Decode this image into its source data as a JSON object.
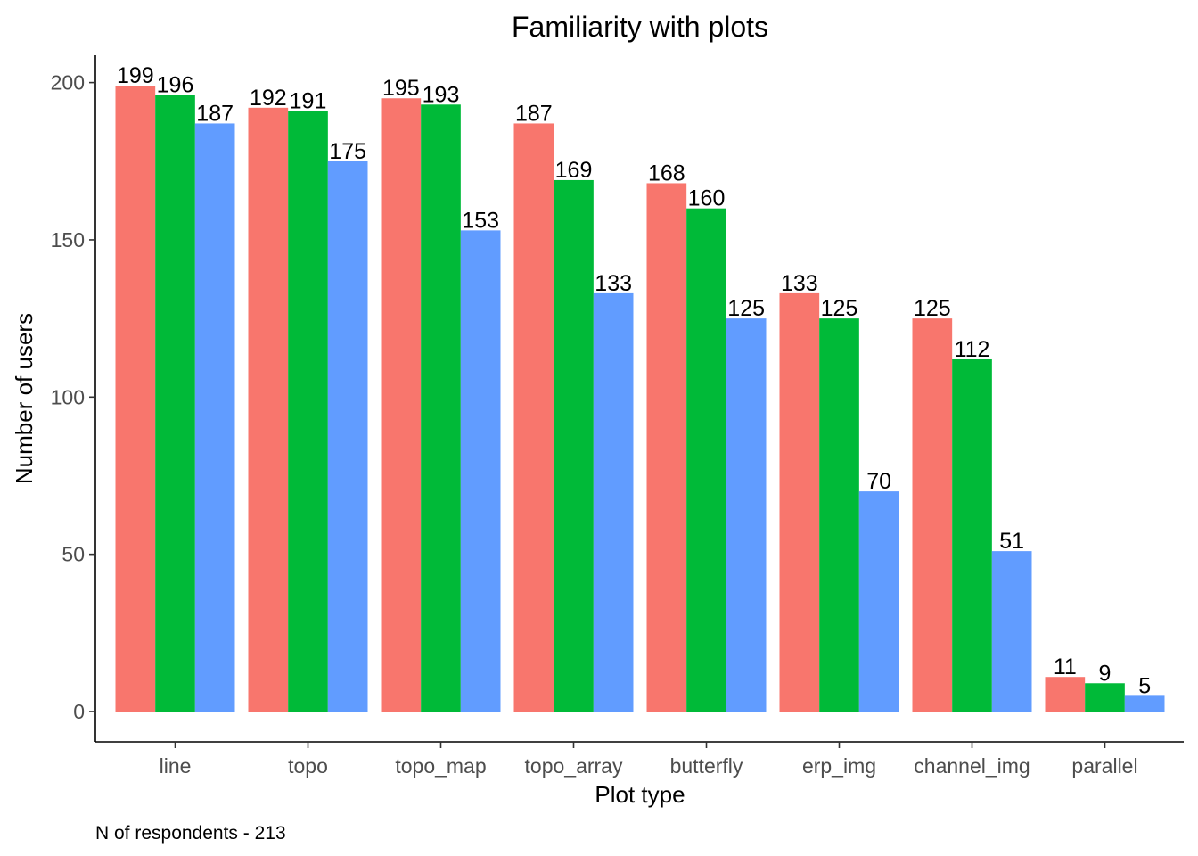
{
  "chart_data": {
    "type": "bar",
    "title": "Familiarity with plots",
    "xlabel": "Plot type",
    "ylabel": "Number of users",
    "caption": "N of respondents - 213",
    "categories": [
      "line",
      "topo",
      "topo_map",
      "topo_array",
      "butterfly",
      "erp_img",
      "channel_img",
      "parallel"
    ],
    "series": [
      {
        "color": "#F8766D",
        "values": [
          199,
          192,
          195,
          187,
          168,
          133,
          125,
          11
        ]
      },
      {
        "color": "#00BA38",
        "values": [
          196,
          191,
          193,
          169,
          160,
          125,
          112,
          9
        ]
      },
      {
        "color": "#619CFF",
        "values": [
          187,
          175,
          153,
          133,
          125,
          70,
          51,
          5
        ]
      }
    ],
    "ylim": [
      0,
      210
    ],
    "yticks": [
      0,
      50,
      100,
      150,
      200
    ],
    "grid": false,
    "legend": "none"
  }
}
